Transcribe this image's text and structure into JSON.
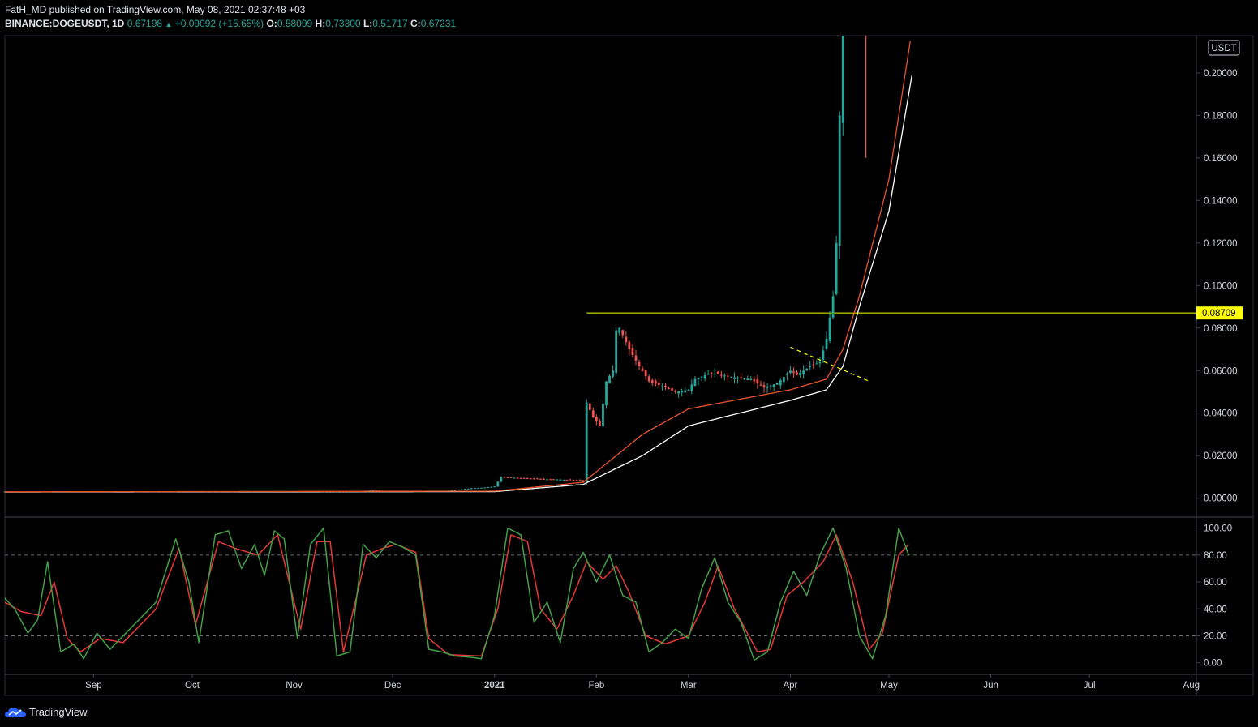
{
  "header": {
    "published_line": "FatH_MD published on TradingView.com, May 08, 2021 02:37:48 +03",
    "symbol": "BINANCE:DOGEUSDT, 1D",
    "last": "0.67198",
    "change": "+0.09092 (+15.65%)",
    "o_label": "O:",
    "o": "0.58099",
    "h_label": "H:",
    "h": "0.73300",
    "l_label": "L:",
    "l": "0.51717",
    "c_label": "C:",
    "c": "0.67231"
  },
  "footer": {
    "brand": "TradingView"
  },
  "colors": {
    "up": "#26a69a",
    "down": "#ef5350",
    "ema_fast": "#e8532b",
    "ema_slow": "#ffffff",
    "level": "#ffff00",
    "k": "#43a047",
    "d": "#e53935"
  },
  "chart_data": [
    {
      "type": "candlestick",
      "currency_label": "USDT",
      "price_ticks": [
        "0.20000",
        "0.18000",
        "0.16000",
        "0.14000",
        "0.12000",
        "0.10000",
        "0.08000",
        "0.06000",
        "0.04000",
        "0.02000",
        "0.00000"
      ],
      "ylim": [
        -0.0085,
        0.2175
      ],
      "horizontal_level": {
        "value": 0.08709,
        "label": "0.08709"
      },
      "time_labels": [
        "Sep",
        "Oct",
        "Nov",
        "Dec",
        "2021",
        "Feb",
        "Mar",
        "Apr",
        "May",
        "Jun",
        "Jul",
        "Aug"
      ],
      "price_path": [
        [
          "2020-08-05",
          0.0031
        ],
        [
          "2020-11-20",
          0.0031
        ],
        [
          "2020-11-25",
          0.0037
        ],
        [
          "2020-12-01",
          0.0032
        ],
        [
          "2020-12-17",
          0.0034
        ],
        [
          "2020-12-25",
          0.0047
        ],
        [
          "2020-12-29",
          0.005
        ],
        [
          "2021-01-01",
          0.0055
        ],
        [
          "2021-01-03",
          0.01
        ],
        [
          "2021-01-08",
          0.0095
        ],
        [
          "2021-01-15",
          0.009
        ],
        [
          "2021-01-27",
          0.0085
        ],
        [
          "2021-01-28",
          0.0074
        ],
        [
          "2021-01-29",
          0.045
        ],
        [
          "2021-01-31",
          0.038
        ],
        [
          "2021-02-02",
          0.034
        ],
        [
          "2021-02-04",
          0.055
        ],
        [
          "2021-02-06",
          0.06
        ],
        [
          "2021-02-07",
          0.079
        ],
        [
          "2021-02-08",
          0.08
        ],
        [
          "2021-02-11",
          0.07
        ],
        [
          "2021-02-14",
          0.062
        ],
        [
          "2021-02-17",
          0.055
        ],
        [
          "2021-02-22",
          0.052
        ],
        [
          "2021-02-25",
          0.05
        ],
        [
          "2021-03-01",
          0.051
        ],
        [
          "2021-03-03",
          0.056
        ],
        [
          "2021-03-08",
          0.059
        ],
        [
          "2021-03-14",
          0.057
        ],
        [
          "2021-03-20",
          0.056
        ],
        [
          "2021-03-24",
          0.052
        ],
        [
          "2021-03-28",
          0.054
        ],
        [
          "2021-04-01",
          0.06
        ],
        [
          "2021-04-03",
          0.058
        ],
        [
          "2021-04-07",
          0.062
        ],
        [
          "2021-04-10",
          0.064
        ],
        [
          "2021-04-12",
          0.075
        ],
        [
          "2021-04-14",
          0.095
        ],
        [
          "2021-04-15",
          0.12
        ],
        [
          "2021-04-16",
          0.18
        ],
        [
          "2021-04-17",
          0.22
        ]
      ],
      "price_path_note": "approximate closes in USDT; candles above ~0.2175 run off the top of the visible chart",
      "ema_fast": [
        [
          "2020-08-05",
          0.003
        ],
        [
          "2021-01-01",
          0.0033
        ],
        [
          "2021-01-28",
          0.0075
        ],
        [
          "2021-02-15",
          0.03
        ],
        [
          "2021-03-01",
          0.042
        ],
        [
          "2021-04-01",
          0.051
        ],
        [
          "2021-04-12",
          0.056
        ],
        [
          "2021-04-17",
          0.07
        ],
        [
          "2021-04-22",
          0.095
        ],
        [
          "2021-05-01",
          0.15
        ],
        [
          "2021-05-08",
          0.22
        ]
      ],
      "ema_slow": [
        [
          "2020-08-05",
          0.0029
        ],
        [
          "2021-01-01",
          0.0031
        ],
        [
          "2021-01-28",
          0.0065
        ],
        [
          "2021-02-15",
          0.02
        ],
        [
          "2021-03-01",
          0.034
        ],
        [
          "2021-04-01",
          0.046
        ],
        [
          "2021-04-12",
          0.051
        ],
        [
          "2021-04-17",
          0.062
        ],
        [
          "2021-04-22",
          0.09
        ],
        [
          "2021-05-01",
          0.135
        ],
        [
          "2021-05-08",
          0.199
        ]
      ],
      "trendline": {
        "from": [
          "2021-04-01",
          0.071
        ],
        "to": [
          "2021-04-25",
          0.055
        ]
      }
    },
    {
      "type": "line",
      "name": "stochastic",
      "y_ticks": [
        "100.00",
        "80.00",
        "60.00",
        "40.00",
        "20.00",
        "0.00"
      ],
      "ylim": [
        -8,
        107
      ],
      "bands": [
        80,
        20
      ],
      "k": [
        [
          "2020-08-05",
          48
        ],
        [
          "2020-08-08",
          40
        ],
        [
          "2020-08-12",
          22
        ],
        [
          "2020-08-15",
          32
        ],
        [
          "2020-08-18",
          75
        ],
        [
          "2020-08-22",
          8
        ],
        [
          "2020-08-26",
          14
        ],
        [
          "2020-08-29",
          3
        ],
        [
          "2020-09-02",
          22
        ],
        [
          "2020-09-06",
          10
        ],
        [
          "2020-09-12",
          25
        ],
        [
          "2020-09-20",
          45
        ],
        [
          "2020-09-26",
          92
        ],
        [
          "2020-09-30",
          60
        ],
        [
          "2020-10-03",
          15
        ],
        [
          "2020-10-08",
          95
        ],
        [
          "2020-10-12",
          98
        ],
        [
          "2020-10-16",
          70
        ],
        [
          "2020-10-20",
          88
        ],
        [
          "2020-10-23",
          65
        ],
        [
          "2020-10-26",
          98
        ],
        [
          "2020-10-29",
          92
        ],
        [
          "2020-11-02",
          18
        ],
        [
          "2020-11-06",
          88
        ],
        [
          "2020-11-10",
          100
        ],
        [
          "2020-11-14",
          5
        ],
        [
          "2020-11-18",
          8
        ],
        [
          "2020-11-22",
          88
        ],
        [
          "2020-11-26",
          78
        ],
        [
          "2020-11-30",
          90
        ],
        [
          "2020-12-04",
          86
        ],
        [
          "2020-12-08",
          80
        ],
        [
          "2020-12-12",
          10
        ],
        [
          "2020-12-16",
          8
        ],
        [
          "2020-12-20",
          5
        ],
        [
          "2020-12-25",
          4
        ],
        [
          "2020-12-28",
          3
        ],
        [
          "2021-01-01",
          35
        ],
        [
          "2021-01-05",
          100
        ],
        [
          "2021-01-09",
          95
        ],
        [
          "2021-01-13",
          30
        ],
        [
          "2021-01-17",
          45
        ],
        [
          "2021-01-21",
          15
        ],
        [
          "2021-01-25",
          70
        ],
        [
          "2021-01-28",
          82
        ],
        [
          "2021-02-01",
          60
        ],
        [
          "2021-02-05",
          80
        ],
        [
          "2021-02-09",
          50
        ],
        [
          "2021-02-13",
          45
        ],
        [
          "2021-02-17",
          8
        ],
        [
          "2021-02-21",
          15
        ],
        [
          "2021-02-25",
          25
        ],
        [
          "2021-03-01",
          18
        ],
        [
          "2021-03-05",
          55
        ],
        [
          "2021-03-09",
          78
        ],
        [
          "2021-03-13",
          45
        ],
        [
          "2021-03-17",
          30
        ],
        [
          "2021-03-21",
          2
        ],
        [
          "2021-03-25",
          8
        ],
        [
          "2021-03-29",
          45
        ],
        [
          "2021-04-02",
          68
        ],
        [
          "2021-04-06",
          50
        ],
        [
          "2021-04-10",
          80
        ],
        [
          "2021-04-14",
          100
        ],
        [
          "2021-04-18",
          70
        ],
        [
          "2021-04-22",
          20
        ],
        [
          "2021-04-26",
          3
        ],
        [
          "2021-04-30",
          35
        ],
        [
          "2021-05-04",
          100
        ],
        [
          "2021-05-07",
          80
        ]
      ],
      "d": [
        [
          "2020-08-05",
          45
        ],
        [
          "2020-08-10",
          38
        ],
        [
          "2020-08-16",
          35
        ],
        [
          "2020-08-20",
          60
        ],
        [
          "2020-08-24",
          18
        ],
        [
          "2020-08-28",
          8
        ],
        [
          "2020-09-03",
          18
        ],
        [
          "2020-09-10",
          15
        ],
        [
          "2020-09-20",
          40
        ],
        [
          "2020-09-27",
          85
        ],
        [
          "2020-10-02",
          28
        ],
        [
          "2020-10-09",
          90
        ],
        [
          "2020-10-14",
          85
        ],
        [
          "2020-10-21",
          80
        ],
        [
          "2020-10-27",
          95
        ],
        [
          "2020-11-03",
          25
        ],
        [
          "2020-11-08",
          90
        ],
        [
          "2020-11-12",
          90
        ],
        [
          "2020-11-16",
          8
        ],
        [
          "2020-11-23",
          80
        ],
        [
          "2020-11-28",
          85
        ],
        [
          "2020-12-02",
          88
        ],
        [
          "2020-12-08",
          82
        ],
        [
          "2020-12-12",
          18
        ],
        [
          "2020-12-18",
          6
        ],
        [
          "2020-12-28",
          5
        ],
        [
          "2021-01-02",
          40
        ],
        [
          "2021-01-06",
          95
        ],
        [
          "2021-01-11",
          90
        ],
        [
          "2021-01-15",
          40
        ],
        [
          "2021-01-20",
          25
        ],
        [
          "2021-01-25",
          50
        ],
        [
          "2021-01-29",
          75
        ],
        [
          "2021-02-03",
          62
        ],
        [
          "2021-02-07",
          72
        ],
        [
          "2021-02-11",
          52
        ],
        [
          "2021-02-16",
          20
        ],
        [
          "2021-02-22",
          14
        ],
        [
          "2021-03-01",
          20
        ],
        [
          "2021-03-06",
          45
        ],
        [
          "2021-03-10",
          72
        ],
        [
          "2021-03-15",
          40
        ],
        [
          "2021-03-22",
          8
        ],
        [
          "2021-03-26",
          10
        ],
        [
          "2021-03-31",
          50
        ],
        [
          "2021-04-05",
          60
        ],
        [
          "2021-04-11",
          75
        ],
        [
          "2021-04-15",
          95
        ],
        [
          "2021-04-20",
          60
        ],
        [
          "2021-04-25",
          10
        ],
        [
          "2021-04-29",
          22
        ],
        [
          "2021-05-04",
          80
        ],
        [
          "2021-05-07",
          88
        ]
      ]
    }
  ]
}
